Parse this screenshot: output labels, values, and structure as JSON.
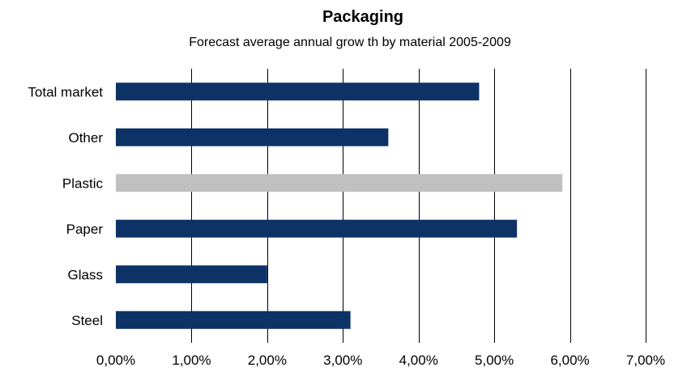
{
  "chart_data": {
    "type": "bar",
    "orientation": "horizontal",
    "title": "Packaging",
    "subtitle": "Forecast average annual grow th by material 2005-2009",
    "xlabel": "",
    "ylabel": "",
    "categories": [
      "Total market",
      "Other",
      "Plastic",
      "Paper",
      "Glass",
      "Steel"
    ],
    "values": [
      4.8,
      3.6,
      5.9,
      5.3,
      2.0,
      3.1
    ],
    "bar_colors": [
      "#0d3366",
      "#0d3366",
      "#c0c0c0",
      "#0d3366",
      "#0d3366",
      "#0d3366"
    ],
    "xlim": [
      0,
      7
    ],
    "xticks": [
      0,
      1,
      2,
      3,
      4,
      5,
      6,
      7
    ],
    "xtick_labels": [
      "0,00%",
      "1,00%",
      "2,00%",
      "3,00%",
      "4,00%",
      "5,00%",
      "6,00%",
      "7,00%"
    ],
    "grid": "vertical",
    "legend": "none"
  }
}
